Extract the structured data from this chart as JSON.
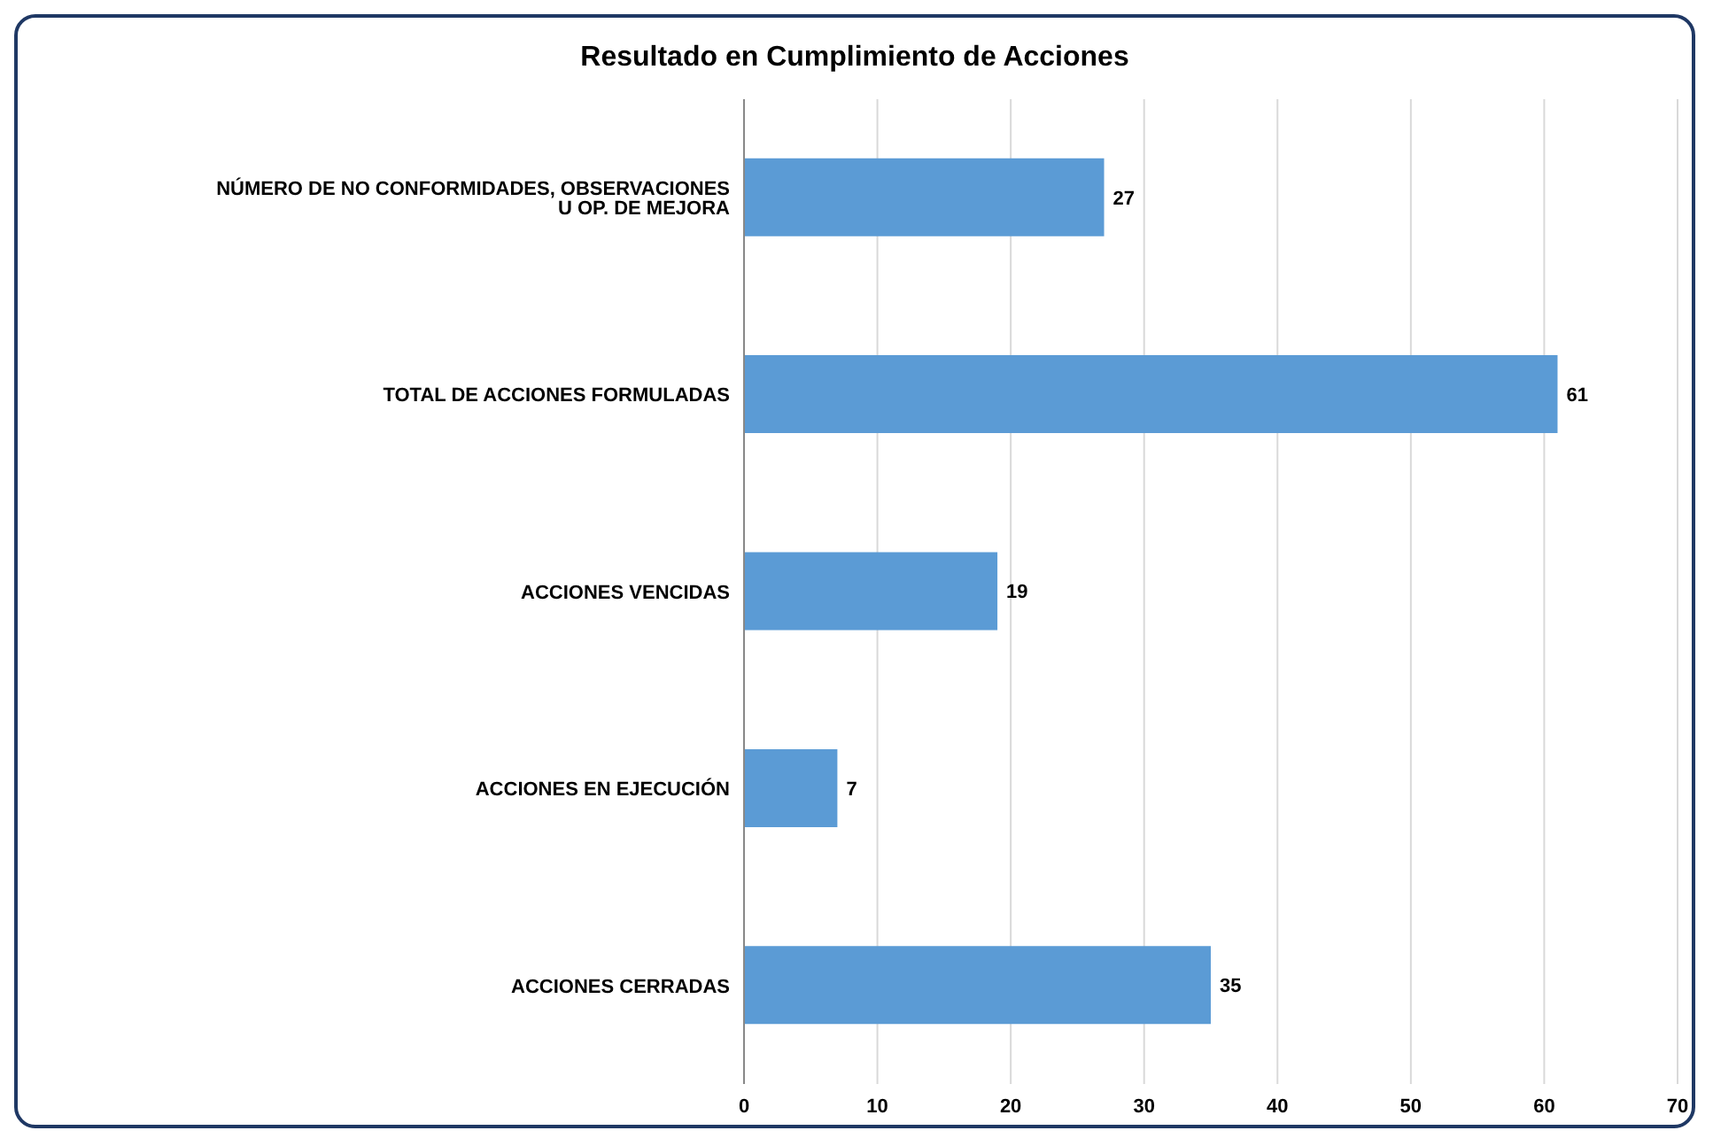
{
  "chart_data": {
    "type": "bar",
    "orientation": "horizontal",
    "title": "Resultado en Cumplimiento de Acciones",
    "categories": [
      "NÚMERO DE NO CONFORMIDADES, OBSERVACIONES U OP. DE MEJORA",
      "TOTAL DE ACCIONES FORMULADAS",
      "ACCIONES VENCIDAS",
      "ACCIONES EN EJECUCIÓN",
      "ACCIONES CERRADAS"
    ],
    "values": [
      27,
      61,
      19,
      7,
      35
    ],
    "color": "#5b9bd5",
    "xlim": [
      0,
      70
    ],
    "xticks": [
      0,
      10,
      20,
      30,
      40,
      50,
      60,
      70
    ],
    "grid": "x",
    "data_labels": true
  }
}
